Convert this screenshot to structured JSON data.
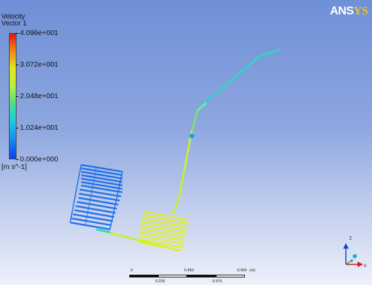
{
  "legend": {
    "title": "Velocity",
    "subtitle": "Vector 1",
    "ticks": [
      "4.096e+001",
      "3.072e+001",
      "2.048e+001",
      "1.024e+001",
      "0.000e+000"
    ],
    "unit": "[m s^-1]",
    "colors": {
      "max": "#e0101a",
      "mid_high": "#e5e817",
      "mid": "#4de08a",
      "mid_low": "#1fd0d8",
      "min": "#0a3df0"
    }
  },
  "logo": {
    "part1": "ANS",
    "part2": "YS"
  },
  "scale": {
    "top_labels": [
      "0",
      "0.450",
      "0.900"
    ],
    "unit": "(m)",
    "bottom_labels": [
      "0.225",
      "0.675"
    ]
  },
  "triad": {
    "z": "Z",
    "y": "Y",
    "x": "X"
  },
  "colors": {
    "coil_left": "#1e6fe8",
    "coil_right": "#e3ef2a",
    "pipe_low": "#c6ee3c",
    "pipe_high": "#2fd6c4"
  }
}
